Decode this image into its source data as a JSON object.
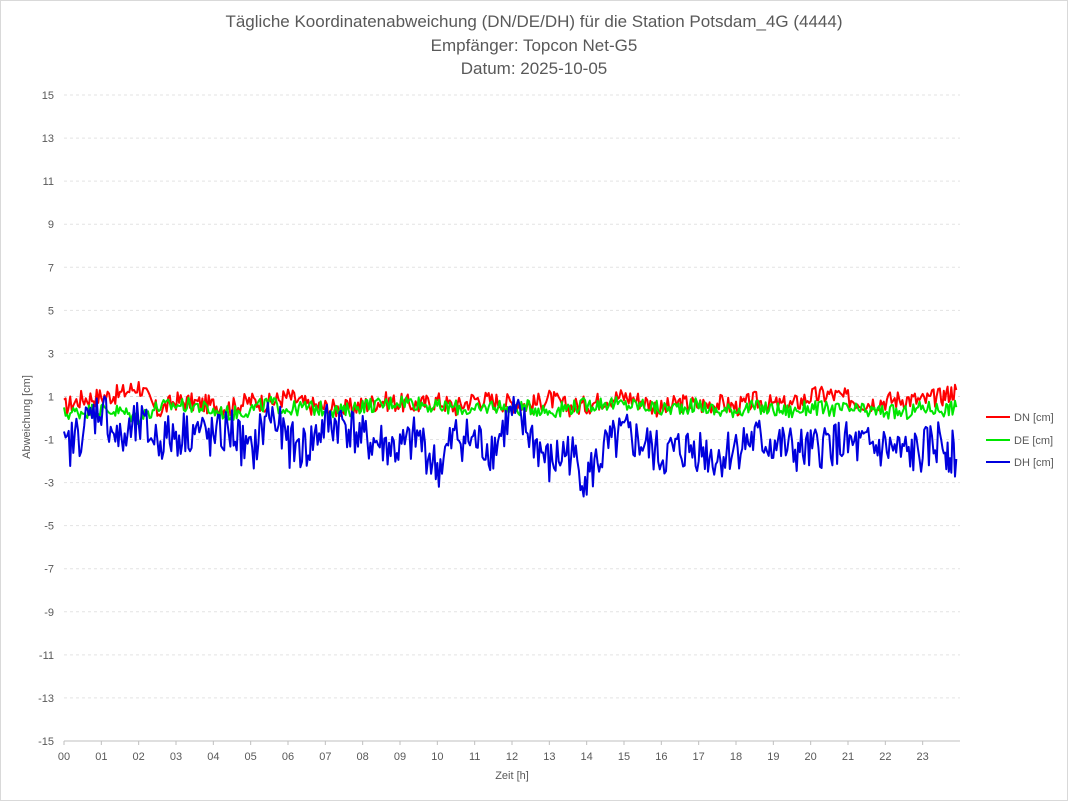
{
  "chart_data": {
    "type": "line",
    "title_lines": [
      "Tägliche Koordinatenabweichung (DN/DE/DH) für die Station Potsdam_4G (4444)",
      "Empfänger: Topcon Net-G5",
      "Datum: 2025-10-05"
    ],
    "xlabel": "Zeit [h]",
    "ylabel": "Abweichung [cm]",
    "xlim": [
      0,
      24
    ],
    "ylim": [
      -15,
      15
    ],
    "x_ticks": [
      "00",
      "01",
      "02",
      "03",
      "04",
      "05",
      "06",
      "07",
      "08",
      "09",
      "10",
      "11",
      "12",
      "13",
      "14",
      "15",
      "16",
      "17",
      "18",
      "19",
      "20",
      "21",
      "22",
      "23"
    ],
    "y_ticks": [
      15,
      13,
      11,
      9,
      7,
      5,
      3,
      1,
      -1,
      -3,
      -5,
      -7,
      -9,
      -11,
      -13,
      -15
    ],
    "grid": "horizontal dashed",
    "legend_position": "right",
    "x": [
      0,
      0.5,
      1,
      1.5,
      2,
      2.5,
      3,
      3.5,
      4,
      4.5,
      5,
      5.5,
      6,
      6.5,
      7,
      7.5,
      8,
      8.5,
      9,
      9.5,
      10,
      10.5,
      11,
      11.5,
      12,
      12.5,
      13,
      13.5,
      14,
      14.5,
      15,
      15.5,
      16,
      16.5,
      17,
      17.5,
      18,
      18.5,
      19,
      19.5,
      20,
      20.5,
      21,
      21.5,
      22,
      22.5,
      23,
      23.5,
      23.9
    ],
    "series": [
      {
        "name": "DN [cm]",
        "color": "#ff0000",
        "values": [
          0.5,
          0.9,
          1.0,
          1.1,
          1.5,
          0.3,
          0.8,
          0.7,
          0.6,
          0.5,
          0.8,
          0.7,
          1.0,
          0.6,
          0.5,
          0.4,
          0.6,
          0.8,
          0.7,
          0.6,
          0.8,
          0.5,
          0.9,
          0.8,
          0.7,
          0.6,
          0.9,
          0.5,
          0.6,
          0.9,
          1.0,
          0.8,
          0.4,
          0.7,
          0.6,
          0.7,
          0.5,
          0.8,
          0.6,
          0.6,
          1.0,
          1.1,
          0.9,
          0.7,
          0.8,
          0.9,
          0.8,
          1.0,
          1.3
        ]
      },
      {
        "name": "DE [cm]",
        "color": "#00e600",
        "values": [
          0.2,
          0.3,
          0.4,
          0.3,
          0.0,
          0.5,
          0.6,
          0.6,
          0.3,
          0.2,
          0.4,
          0.7,
          0.4,
          0.5,
          0.4,
          0.3,
          0.6,
          0.6,
          0.8,
          0.7,
          0.5,
          0.5,
          0.3,
          0.6,
          0.4,
          0.5,
          0.3,
          0.5,
          0.6,
          0.7,
          0.6,
          0.6,
          0.4,
          0.5,
          0.6,
          0.3,
          0.4,
          0.5,
          0.4,
          0.3,
          0.5,
          0.4,
          0.4,
          0.3,
          0.3,
          0.2,
          0.5,
          0.4,
          0.5
        ]
      },
      {
        "name": "DH [cm]",
        "color": "#0000dd",
        "values": [
          -1.6,
          -0.5,
          0.6,
          -1.2,
          -0.3,
          -1.0,
          -0.8,
          -0.5,
          -1.0,
          -0.5,
          -1.8,
          0.3,
          -1.2,
          -1.4,
          -0.3,
          -0.2,
          -1.0,
          -1.2,
          -1.5,
          -0.9,
          -2.4,
          -0.8,
          -1.1,
          -1.4,
          0.2,
          -0.8,
          -2.2,
          -1.5,
          -2.8,
          -1.5,
          -0.8,
          -1.2,
          -1.8,
          -1.5,
          -1.4,
          -1.9,
          -1.3,
          -1.0,
          -1.2,
          -1.5,
          -1.6,
          -1.1,
          -1.3,
          -1.4,
          -1.4,
          -1.7,
          -1.6,
          -1.0,
          -1.9
        ]
      }
    ]
  }
}
